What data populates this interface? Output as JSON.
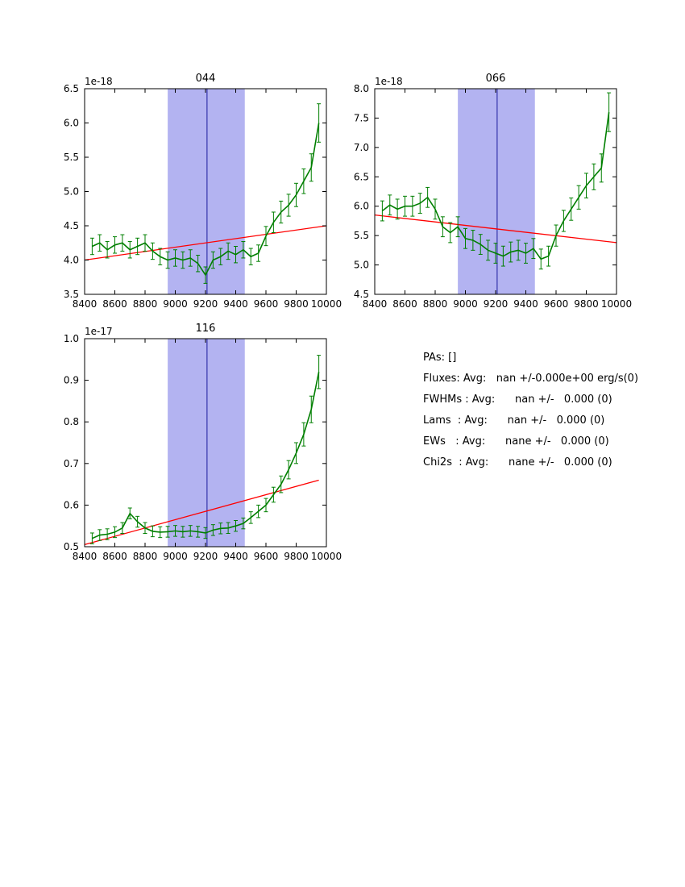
{
  "figure": {
    "background": "#ffffff"
  },
  "colors": {
    "series": "#007f00",
    "fit": "#ff0000",
    "band": "#b3b3f1",
    "vline": "#3333aa",
    "axis": "#000000"
  },
  "text_panel": {
    "lines": [
      "PAs: []",
      "Fluxes: Avg:   nan +/-0.000e+00 erg/s(0)",
      "FWHMs : Avg:      nan +/-   0.000 (0)",
      "Lams  : Avg:      nan +/-   0.000 (0)",
      "EWs   : Avg:      nane +/-   0.000 (0)",
      "Chi2s  : Avg:      nane +/-   0.000 (0)"
    ]
  },
  "chart_data": [
    {
      "type": "line",
      "title": "044",
      "offset_label": "1e-18",
      "xlabel": "",
      "ylabel": "",
      "xlim": [
        8400,
        10000
      ],
      "ylim": [
        3.5,
        6.5
      ],
      "xticks": [
        8400,
        8600,
        8800,
        9000,
        9200,
        9400,
        9600,
        9800,
        10000
      ],
      "yticks": [
        3.5,
        4.0,
        4.5,
        5.0,
        5.5,
        6.0,
        6.5
      ],
      "band": [
        8950,
        9460
      ],
      "vline": 9210,
      "fit_line": {
        "x": [
          8400,
          10000
        ],
        "y": [
          4.0,
          4.5
        ]
      },
      "x": [
        8450,
        8500,
        8550,
        8600,
        8650,
        8700,
        8750,
        8800,
        8850,
        8900,
        8950,
        9000,
        9050,
        9100,
        9150,
        9200,
        9250,
        9300,
        9350,
        9400,
        9450,
        9500,
        9550,
        9600,
        9650,
        9700,
        9750,
        9800,
        9850,
        9900,
        9950
      ],
      "y": [
        4.2,
        4.25,
        4.15,
        4.22,
        4.25,
        4.15,
        4.2,
        4.25,
        4.13,
        4.05,
        4.0,
        4.03,
        4.0,
        4.03,
        3.95,
        3.78,
        4.0,
        4.05,
        4.13,
        4.08,
        4.15,
        4.05,
        4.1,
        4.35,
        4.55,
        4.7,
        4.8,
        4.95,
        5.15,
        5.35,
        6.0
      ],
      "yerr": [
        0.12,
        0.12,
        0.12,
        0.12,
        0.12,
        0.12,
        0.12,
        0.12,
        0.12,
        0.12,
        0.12,
        0.12,
        0.12,
        0.12,
        0.12,
        0.12,
        0.12,
        0.12,
        0.12,
        0.12,
        0.12,
        0.12,
        0.12,
        0.14,
        0.15,
        0.16,
        0.16,
        0.17,
        0.18,
        0.2,
        0.28
      ]
    },
    {
      "type": "line",
      "title": "066",
      "offset_label": "1e-18",
      "xlabel": "",
      "ylabel": "",
      "xlim": [
        8400,
        10000
      ],
      "ylim": [
        4.5,
        8.0
      ],
      "xticks": [
        8400,
        8600,
        8800,
        9000,
        9200,
        9400,
        9600,
        9800,
        10000
      ],
      "yticks": [
        4.5,
        5.0,
        5.5,
        6.0,
        6.5,
        7.0,
        7.5,
        8.0
      ],
      "band": [
        8950,
        9460
      ],
      "vline": 9210,
      "fit_line": {
        "x": [
          8400,
          10000
        ],
        "y": [
          5.85,
          5.38
        ]
      },
      "x": [
        8450,
        8500,
        8550,
        8600,
        8650,
        8700,
        8750,
        8800,
        8850,
        8900,
        8950,
        9000,
        9050,
        9100,
        9150,
        9200,
        9250,
        9300,
        9350,
        9400,
        9450,
        9500,
        9550,
        9600,
        9650,
        9700,
        9750,
        9800,
        9850,
        9900,
        9950
      ],
      "y": [
        5.92,
        6.02,
        5.95,
        6.0,
        6.0,
        6.05,
        6.15,
        5.95,
        5.65,
        5.55,
        5.65,
        5.45,
        5.42,
        5.35,
        5.25,
        5.2,
        5.15,
        5.22,
        5.25,
        5.2,
        5.28,
        5.1,
        5.15,
        5.5,
        5.75,
        5.95,
        6.15,
        6.35,
        6.5,
        6.65,
        7.6
      ],
      "yerr": [
        0.17,
        0.17,
        0.17,
        0.17,
        0.17,
        0.17,
        0.17,
        0.17,
        0.17,
        0.17,
        0.17,
        0.17,
        0.17,
        0.17,
        0.17,
        0.17,
        0.17,
        0.17,
        0.17,
        0.17,
        0.17,
        0.17,
        0.17,
        0.18,
        0.18,
        0.19,
        0.2,
        0.21,
        0.22,
        0.24,
        0.33
      ]
    },
    {
      "type": "line",
      "title": "116",
      "offset_label": "1e-17",
      "xlabel": "",
      "ylabel": "",
      "xlim": [
        8400,
        10000
      ],
      "ylim": [
        0.5,
        1.0
      ],
      "xticks": [
        8400,
        8600,
        8800,
        9000,
        9200,
        9400,
        9600,
        9800,
        10000
      ],
      "yticks": [
        0.5,
        0.6,
        0.7,
        0.8,
        0.9,
        1.0
      ],
      "band": [
        8950,
        9460
      ],
      "vline": 9210,
      "fit_line": {
        "x": [
          8400,
          9950
        ],
        "y": [
          0.505,
          0.66
        ]
      },
      "x": [
        8450,
        8500,
        8550,
        8600,
        8650,
        8700,
        8750,
        8800,
        8850,
        8900,
        8950,
        9000,
        9050,
        9100,
        9150,
        9200,
        9250,
        9300,
        9350,
        9400,
        9450,
        9500,
        9550,
        9600,
        9650,
        9700,
        9750,
        9800,
        9850,
        9900,
        9950
      ],
      "y": [
        0.52,
        0.528,
        0.53,
        0.535,
        0.545,
        0.58,
        0.56,
        0.545,
        0.537,
        0.535,
        0.536,
        0.538,
        0.536,
        0.538,
        0.536,
        0.533,
        0.54,
        0.544,
        0.545,
        0.55,
        0.556,
        0.57,
        0.585,
        0.6,
        0.625,
        0.65,
        0.685,
        0.725,
        0.77,
        0.83,
        0.92
      ],
      "yerr": [
        0.013,
        0.013,
        0.013,
        0.013,
        0.013,
        0.013,
        0.013,
        0.013,
        0.013,
        0.013,
        0.013,
        0.013,
        0.013,
        0.013,
        0.013,
        0.013,
        0.013,
        0.013,
        0.013,
        0.013,
        0.013,
        0.014,
        0.015,
        0.016,
        0.018,
        0.02,
        0.022,
        0.025,
        0.028,
        0.032,
        0.04
      ]
    }
  ]
}
